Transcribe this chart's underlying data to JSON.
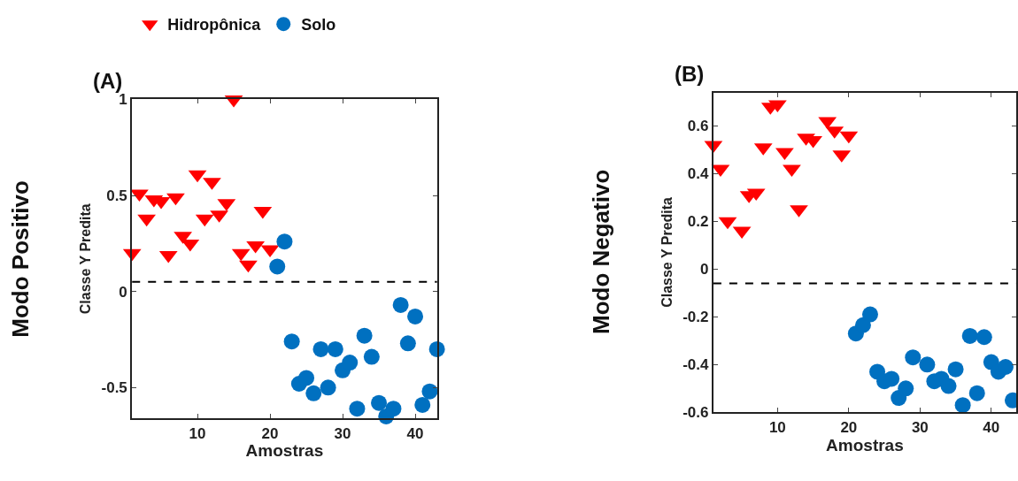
{
  "chart_data": [
    {
      "type": "scatter",
      "title": "(A)",
      "xlabel": "Amostras",
      "ylabel": "Classe Y Predita",
      "annotations": [
        "Modo Positivo"
      ],
      "xlim": [
        1,
        43
      ],
      "ylim": [
        -0.66,
        1
      ],
      "xticks": [
        10,
        20,
        30,
        40
      ],
      "yticks": [
        -0.5,
        0,
        0.5,
        1
      ],
      "legend": "top left",
      "ref_lines": [
        {
          "axis": "y",
          "value": 0.05,
          "color": "#000000",
          "line_style": "dashed"
        }
      ],
      "series": [
        {
          "name": "Hidropônica",
          "color": "#ff0000",
          "marker": "triangle",
          "x": [
            1,
            2,
            3,
            4,
            5,
            6,
            7,
            8,
            9,
            10,
            11,
            12,
            13,
            14,
            15,
            16,
            17,
            18,
            19,
            20
          ],
          "values": [
            0.2,
            0.51,
            0.38,
            0.48,
            0.47,
            0.19,
            0.49,
            0.29,
            0.25,
            0.61,
            0.38,
            0.57,
            0.4,
            0.46,
            1.0,
            0.2,
            0.14,
            0.24,
            0.42,
            0.22
          ]
        },
        {
          "name": "Solo",
          "color": "#0070c0",
          "marker": "circle",
          "x": [
            21,
            22,
            23,
            24,
            25,
            26,
            27,
            28,
            29,
            30,
            31,
            32,
            33,
            34,
            35,
            36,
            37,
            38,
            39,
            40,
            41,
            42,
            43
          ],
          "values": [
            0.13,
            0.26,
            -0.26,
            -0.48,
            -0.45,
            -0.53,
            -0.3,
            -0.5,
            -0.3,
            -0.41,
            -0.37,
            -0.61,
            -0.23,
            -0.34,
            -0.58,
            -0.65,
            -0.61,
            -0.07,
            -0.27,
            -0.13,
            -0.59,
            -0.52,
            -0.3
          ]
        }
      ]
    },
    {
      "type": "scatter",
      "title": "(B)",
      "xlabel": "Amostras",
      "ylabel": "Classe Y Predita",
      "annotations": [
        "Modo Negativo"
      ],
      "xlim": [
        1,
        43.5
      ],
      "ylim": [
        -0.6,
        0.74
      ],
      "xticks": [
        10,
        20,
        30,
        40
      ],
      "yticks": [
        -0.6,
        -0.4,
        -0.2,
        0,
        0.2,
        0.4,
        0.6
      ],
      "ref_lines": [
        {
          "axis": "y",
          "value": -0.06,
          "color": "#000000",
          "line_style": "dashed"
        }
      ],
      "series": [
        {
          "color": "#ff0000",
          "marker": "triangle",
          "x": [
            1,
            2,
            3,
            4,
            5,
            6,
            7,
            8,
            9,
            10,
            11,
            12,
            13,
            14,
            15,
            16,
            17,
            18,
            19,
            20
          ],
          "values": [
            0.52,
            0.42,
            0.2,
            null,
            0.16,
            0.31,
            0.32,
            0.51,
            0.68,
            0.69,
            0.49,
            0.42,
            0.25,
            0.55,
            0.54,
            null,
            0.62,
            0.58,
            0.48,
            0.56
          ]
        },
        {
          "color": "#0070c0",
          "marker": "circle",
          "x": [
            21,
            22,
            23,
            24,
            25,
            26,
            27,
            28,
            29,
            30,
            31,
            32,
            33,
            34,
            35,
            36,
            37,
            38,
            39,
            40,
            41,
            42,
            43
          ],
          "values": [
            -0.27,
            -0.235,
            -0.19,
            -0.43,
            -0.47,
            -0.46,
            -0.54,
            -0.5,
            -0.37,
            null,
            -0.4,
            -0.47,
            -0.46,
            -0.49,
            -0.42,
            -0.57,
            -0.28,
            -0.52,
            -0.285,
            -0.39,
            -0.43,
            -0.41,
            -0.55
          ]
        }
      ]
    }
  ]
}
